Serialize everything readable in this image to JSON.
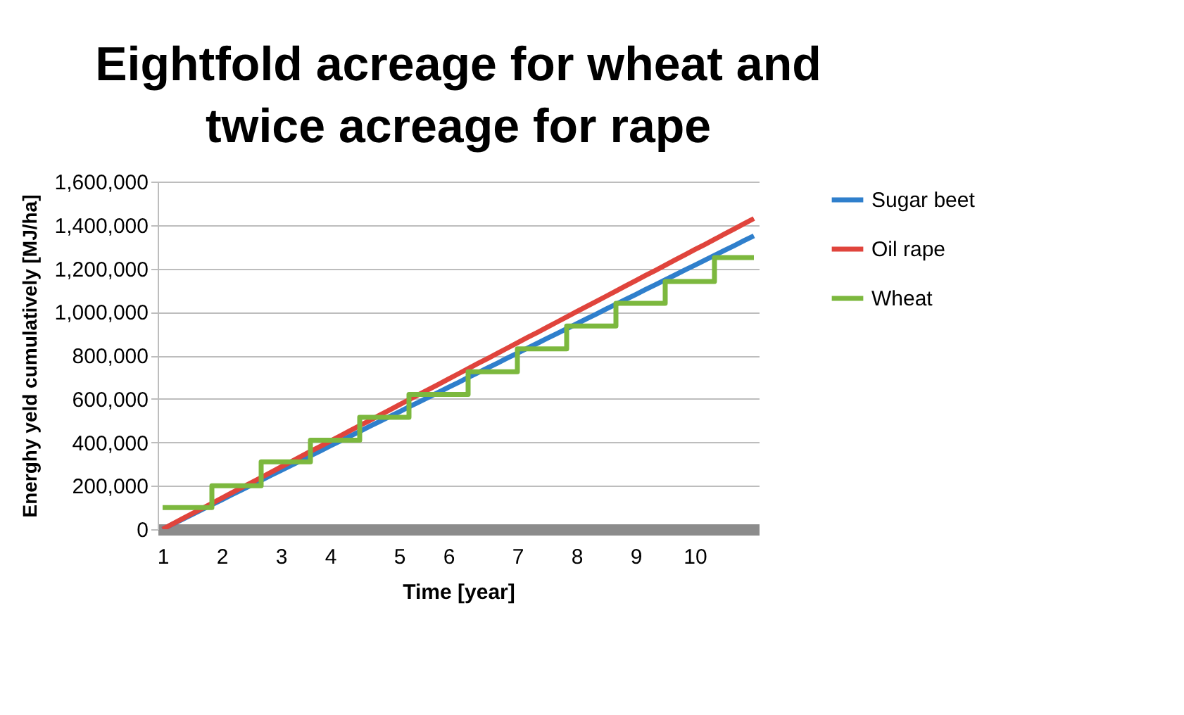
{
  "chart_data": {
    "type": "line",
    "title": "Eightfold acreage for wheat and twice acreage for rape",
    "xlabel": "Time [year]",
    "ylabel": "Energhy yeld cumulatively [MJ/ha]",
    "categories": [
      "1",
      null,
      null,
      null,
      null,
      null,
      "2",
      null,
      null,
      null,
      null,
      null,
      "3",
      null,
      null,
      null,
      null,
      "4",
      null,
      null,
      null,
      null,
      null,
      null,
      "5",
      null,
      null,
      null,
      null,
      "6",
      null,
      null,
      null,
      null,
      null,
      null,
      "7",
      null,
      null,
      null,
      null,
      null,
      "8",
      null,
      null,
      null,
      null,
      null,
      "9",
      null,
      null,
      null,
      null,
      null,
      "10",
      null,
      null,
      null,
      null,
      null,
      null
    ],
    "series": [
      {
        "name": "Sugar beet",
        "color": "#2f7fcc",
        "values": [
          0,
          23000,
          45000,
          68000,
          90000,
          113000,
          135000,
          158000,
          180000,
          203000,
          225000,
          248000,
          270000,
          293000,
          315000,
          338000,
          360000,
          383000,
          405000,
          428000,
          450000,
          473000,
          495000,
          518000,
          540000,
          563000,
          585000,
          608000,
          630000,
          653000,
          675000,
          698000,
          720000,
          743000,
          765000,
          788000,
          810000,
          833000,
          855000,
          878000,
          900000,
          923000,
          945000,
          968000,
          990000,
          1013000,
          1035000,
          1058000,
          1080000,
          1103000,
          1125000,
          1148000,
          1170000,
          1193000,
          1215000,
          1238000,
          1260000,
          1283000,
          1305000,
          1328000,
          1350000
        ]
      },
      {
        "name": "Oil rape",
        "color": "#e0443c",
        "values": [
          0,
          24000,
          48000,
          72000,
          95000,
          119000,
          143000,
          167000,
          191000,
          214000,
          238000,
          262000,
          286000,
          310000,
          334000,
          358000,
          381000,
          405000,
          429000,
          453000,
          477000,
          500000,
          524000,
          548000,
          572000,
          596000,
          620000,
          643000,
          667000,
          691000,
          715000,
          739000,
          763000,
          786000,
          810000,
          834000,
          858000,
          882000,
          905000,
          929000,
          953000,
          977000,
          1001000,
          1025000,
          1048000,
          1072000,
          1096000,
          1120000,
          1144000,
          1168000,
          1191000,
          1215000,
          1239000,
          1263000,
          1287000,
          1310000,
          1334000,
          1358000,
          1382000,
          1406000,
          1430000
        ]
      },
      {
        "name": "Wheat",
        "type": "step",
        "color": "#7cb83e",
        "values": [
          100000,
          100000,
          100000,
          100000,
          100000,
          200000,
          200000,
          200000,
          200000,
          200000,
          310000,
          310000,
          310000,
          310000,
          310000,
          410000,
          410000,
          410000,
          410000,
          410000,
          515000,
          515000,
          515000,
          515000,
          515000,
          620000,
          620000,
          620000,
          620000,
          620000,
          620000,
          725000,
          725000,
          725000,
          725000,
          725000,
          830000,
          830000,
          830000,
          830000,
          830000,
          935000,
          935000,
          935000,
          935000,
          935000,
          1040000,
          1040000,
          1040000,
          1040000,
          1040000,
          1140000,
          1140000,
          1140000,
          1140000,
          1140000,
          1250000,
          1250000,
          1250000,
          1250000,
          1250000
        ]
      }
    ],
    "ylim": [
      0,
      1600000
    ],
    "yticks": [
      0,
      {
        "value": 200000,
        "label": "200,000"
      },
      {
        "value": 400000,
        "label": "400,000"
      },
      {
        "value": 600000,
        "label": "600,000"
      },
      {
        "value": 800000,
        "label": "800,000"
      },
      {
        "value": 1000000,
        "label": "1,000,000"
      },
      {
        "value": 1200000,
        "label": "1,200,000"
      },
      {
        "value": 1400000,
        "label": "1,400,000"
      },
      {
        "value": 1600000,
        "label": "1,600,000"
      }
    ],
    "grid": "y",
    "legend": "right"
  }
}
